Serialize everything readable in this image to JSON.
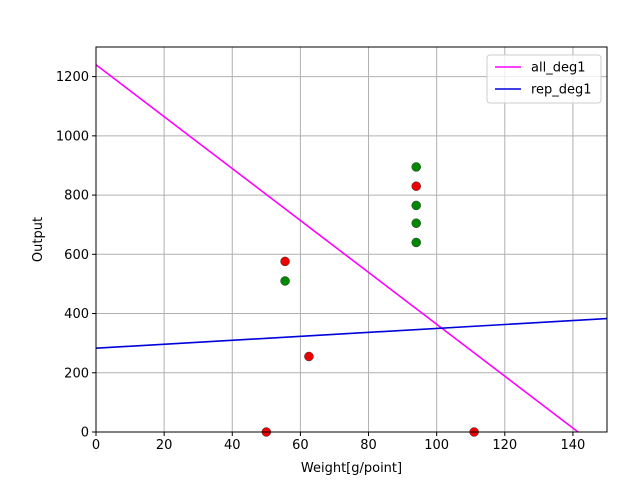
{
  "chart_data": {
    "type": "scatter",
    "title": "",
    "xlabel": "Weight[g/point]",
    "ylabel": "Output",
    "xlim": [
      0,
      150
    ],
    "ylim": [
      0,
      1300
    ],
    "xticks": [
      0,
      20,
      40,
      60,
      80,
      100,
      120,
      140
    ],
    "yticks": [
      0,
      200,
      400,
      600,
      800,
      1000,
      1200
    ],
    "grid": true,
    "legend_position": "top-right",
    "lines": [
      {
        "name": "all_deg1",
        "color": "#ff00ff",
        "x": [
          0,
          141.5
        ],
        "y": [
          1240,
          0
        ]
      },
      {
        "name": "rep_deg1",
        "color": "#0000dd",
        "x": [
          0,
          150
        ],
        "y": [
          283,
          383
        ]
      }
    ],
    "points": [
      {
        "x": 50,
        "y": 0,
        "color": "#ee0000"
      },
      {
        "x": 55.5,
        "y": 576,
        "color": "#ee0000"
      },
      {
        "x": 55.5,
        "y": 510,
        "color": "#008800"
      },
      {
        "x": 62.5,
        "y": 255,
        "color": "#ee0000"
      },
      {
        "x": 94,
        "y": 895,
        "color": "#008800"
      },
      {
        "x": 94,
        "y": 830,
        "color": "#ee0000"
      },
      {
        "x": 94,
        "y": 765,
        "color": "#008800"
      },
      {
        "x": 94,
        "y": 705,
        "color": "#008800"
      },
      {
        "x": 94,
        "y": 640,
        "color": "#008800"
      },
      {
        "x": 111,
        "y": 0,
        "color": "#ee0000"
      }
    ]
  }
}
